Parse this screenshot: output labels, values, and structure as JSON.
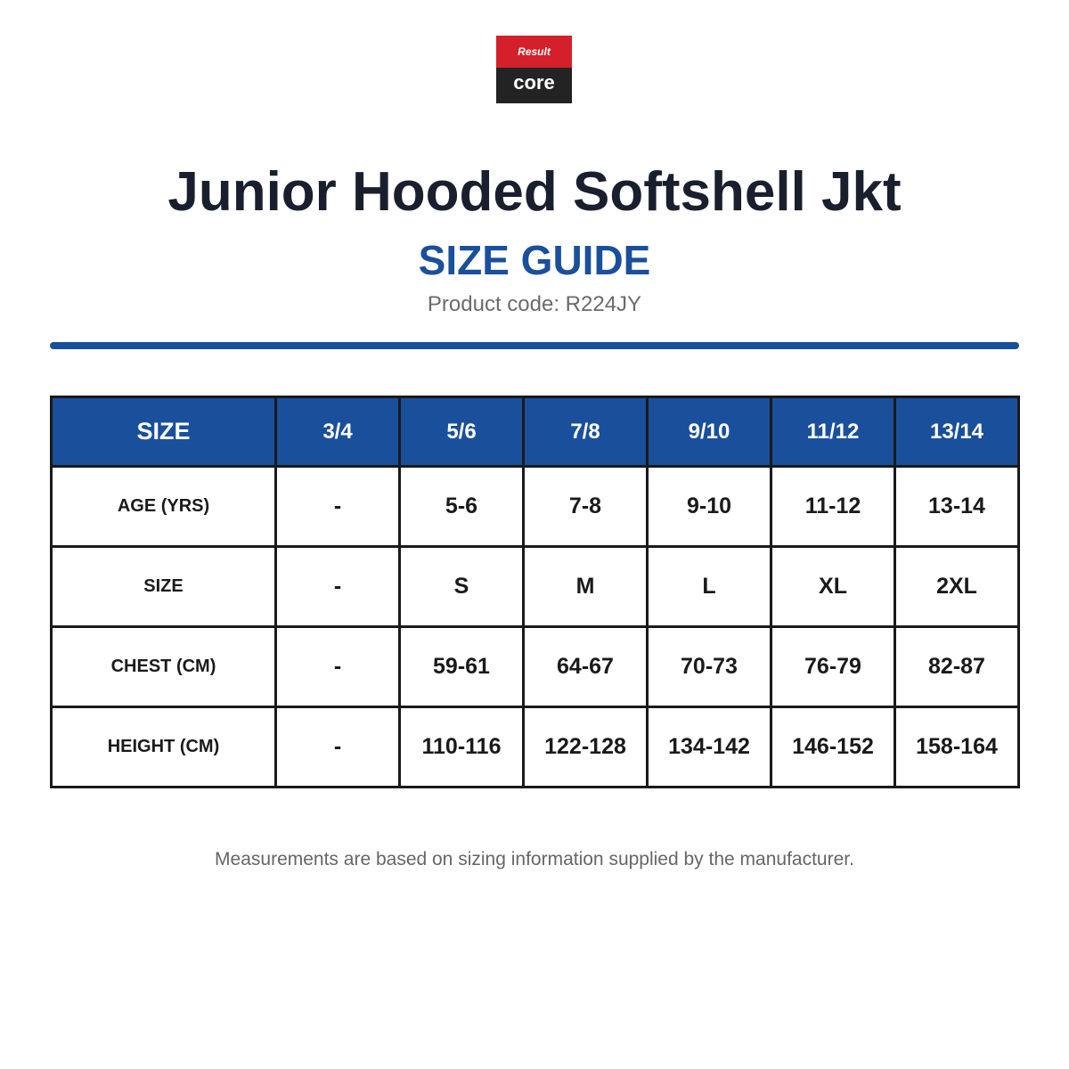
{
  "logo": {
    "top": "Result",
    "bottom": "core"
  },
  "header": {
    "title": "Junior Hooded Softshell Jkt",
    "subtitle": "SIZE GUIDE",
    "product_code": "Product code: R224JY"
  },
  "table": {
    "header": [
      "SIZE",
      "3/4",
      "5/6",
      "7/8",
      "9/10",
      "11/12",
      "13/14"
    ],
    "rows": [
      [
        "AGE (YRS)",
        "-",
        "5-6",
        "7-8",
        "9-10",
        "11-12",
        "13-14"
      ],
      [
        "SIZE",
        "-",
        "S",
        "M",
        "L",
        "XL",
        "2XL"
      ],
      [
        "CHEST (CM)",
        "-",
        "59-61",
        "64-67",
        "70-73",
        "76-79",
        "82-87"
      ],
      [
        "HEIGHT (CM)",
        "-",
        "110-116",
        "122-128",
        "134-142",
        "146-152",
        "158-164"
      ]
    ]
  },
  "footer": {
    "note": "Measurements are based on sizing information supplied by the manufacturer."
  }
}
